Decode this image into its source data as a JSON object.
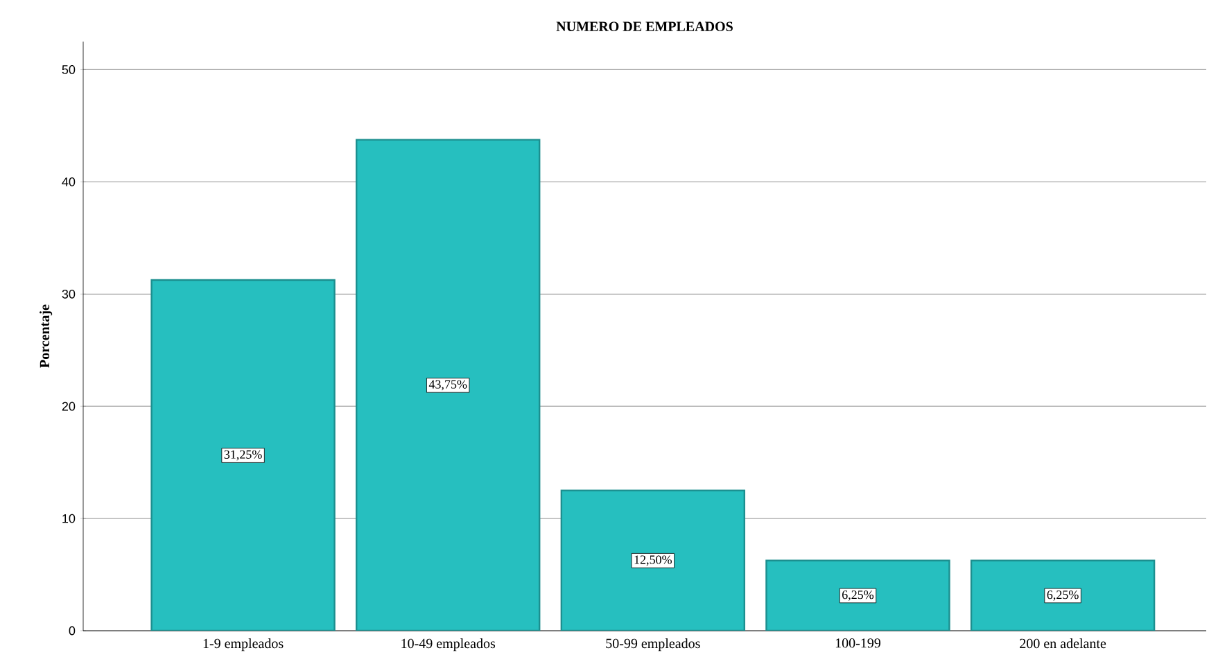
{
  "chart_data": {
    "type": "bar",
    "title": "NUMERO DE EMPLEADOS",
    "ylabel": "Porcentaje",
    "categories": [
      "1-9 empleados",
      "10-49 empleados",
      "50-99 empleados",
      "100-199",
      "200 en adelante"
    ],
    "values": [
      31.25,
      43.75,
      12.5,
      6.25,
      6.25
    ],
    "value_labels": [
      "31,25%",
      "43,75%",
      "12,50%",
      "6,25%",
      "6,25%"
    ],
    "color": "#26bfbf",
    "ylim": [
      0,
      52.5
    ],
    "yticks": [
      0,
      10,
      20,
      30,
      40,
      50
    ],
    "grid": "y"
  }
}
